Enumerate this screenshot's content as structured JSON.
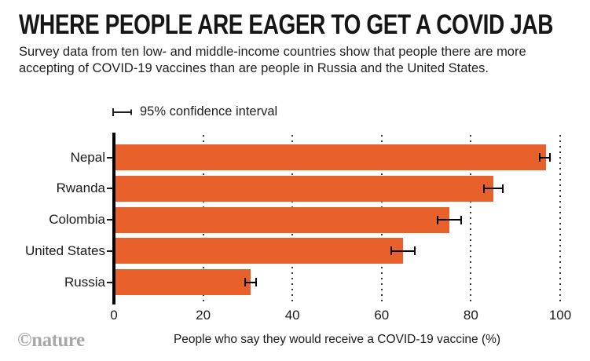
{
  "header": {
    "title": "WHERE PEOPLE ARE EAGER TO GET A COVID JAB",
    "subtitle": "Survey data from ten low- and middle-income countries show that people there are more accepting of COVID-19 vaccines than are people in Russia and the United States."
  },
  "legend": {
    "icon": "error-bar-icon",
    "label": "95% confidence interval"
  },
  "chart_data": {
    "type": "bar",
    "orientation": "horizontal",
    "categories": [
      "Nepal",
      "Rwanda",
      "Colombia",
      "United States",
      "Russia"
    ],
    "values": [
      96.8,
      85.0,
      75.2,
      64.8,
      30.6
    ],
    "ci_low": [
      95.4,
      83.0,
      72.5,
      62.1,
      29.4
    ],
    "ci_high": [
      97.7,
      87.2,
      77.8,
      67.4,
      31.9
    ],
    "xlabel": "People who say they would receive a COVID-19 vaccine (%)",
    "xlim": [
      0,
      100
    ],
    "xticks": [
      0,
      20,
      40,
      60,
      80,
      100
    ],
    "grid": "vertical-dotted",
    "legend_position": "top-left",
    "bar_color": "#E8612B",
    "error_bar_color": "#000000",
    "axis_color": "#000000"
  },
  "footer": {
    "watermark": "©nature"
  }
}
